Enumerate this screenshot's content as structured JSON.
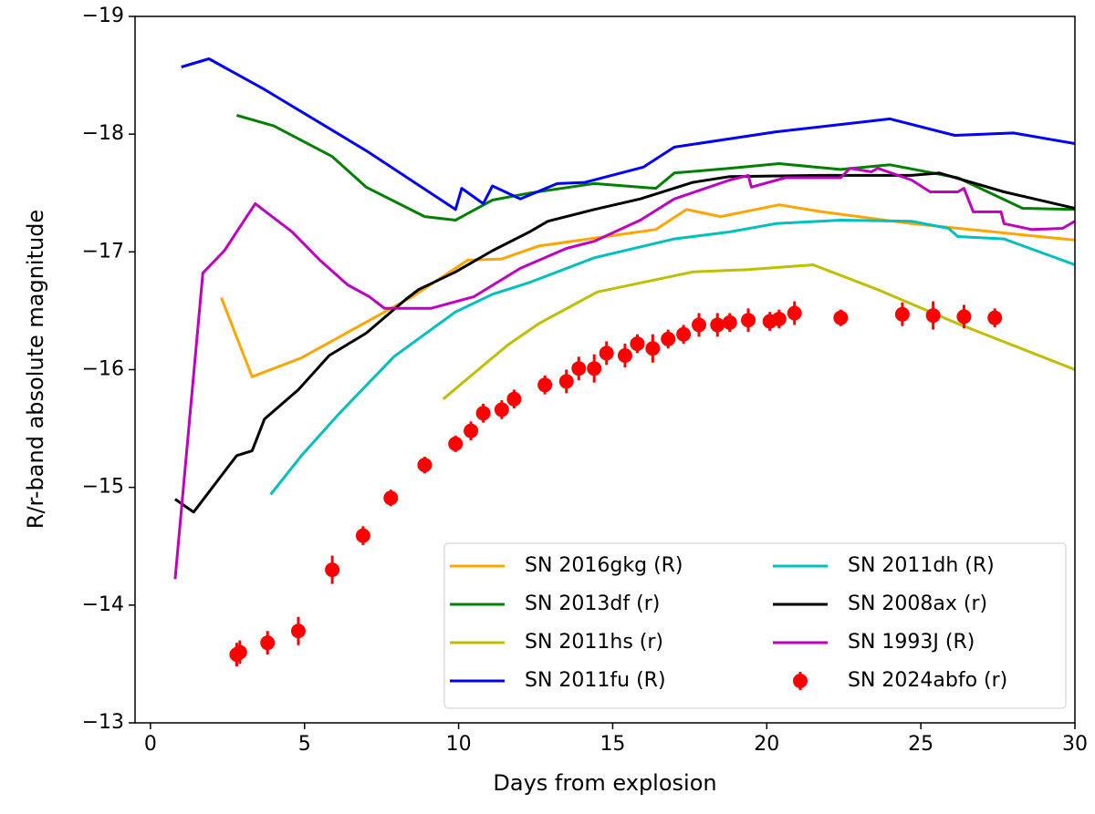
{
  "chart_data": {
    "type": "line",
    "x_label": "Days from explosion",
    "y_label": "R/r-band absolute magnitude",
    "xlim": [
      -0.5,
      30
    ],
    "xticks": [
      0,
      5,
      10,
      15,
      20,
      25,
      30
    ],
    "ylim": [
      -13,
      -19
    ],
    "yticks": [
      {
        "value": -19,
        "label": "−19"
      },
      {
        "value": -18,
        "label": "−18"
      },
      {
        "value": -17,
        "label": "−17"
      },
      {
        "value": -16,
        "label": "−16"
      },
      {
        "value": -15,
        "label": "−15"
      },
      {
        "value": -14,
        "label": "−14"
      },
      {
        "value": -13,
        "label": "−13"
      }
    ],
    "grid": false,
    "legend": "lower right",
    "series": [
      {
        "name": "SN 2016gkg (R)",
        "color": "#ffa500",
        "x": [
          2.3,
          3.3,
          4.9,
          8.5,
          10.3,
          11.4,
          12.6,
          15.3,
          16.4,
          17.4,
          18.5,
          20.4,
          21.8,
          24.7,
          30.0
        ],
        "values": [
          -16.61,
          -15.94,
          -16.1,
          -16.62,
          -16.93,
          -16.94,
          -17.05,
          -17.15,
          -17.19,
          -17.36,
          -17.3,
          -17.4,
          -17.34,
          -17.24,
          -17.1
        ]
      },
      {
        "name": "SN 2013df (r)",
        "color": "#008000",
        "x": [
          2.8,
          4.0,
          5.9,
          7.0,
          8.9,
          9.9,
          11.1,
          12.3,
          14.4,
          16.4,
          17.0,
          18.8,
          20.4,
          22.4,
          24.0,
          26.2,
          28.3,
          30.0
        ],
        "values": [
          -18.16,
          -18.07,
          -17.81,
          -17.55,
          -17.3,
          -17.27,
          -17.44,
          -17.5,
          -17.58,
          -17.54,
          -17.67,
          -17.71,
          -17.75,
          -17.7,
          -17.74,
          -17.63,
          -17.37,
          -17.36
        ]
      },
      {
        "name": "SN 2011hs (r)",
        "color": "#bfbf00",
        "x": [
          9.5,
          10.5,
          11.6,
          12.6,
          14.5,
          17.6,
          19.4,
          21.5,
          23.6,
          26.2,
          30.0
        ],
        "values": [
          -15.75,
          -15.97,
          -16.21,
          -16.39,
          -16.66,
          -16.83,
          -16.85,
          -16.89,
          -16.68,
          -16.39,
          -16.0
        ]
      },
      {
        "name": "SN 2011fu (R)",
        "color": "#0000ff",
        "x": [
          1.0,
          1.9,
          3.7,
          7.0,
          9.9,
          10.1,
          10.8,
          11.1,
          12.0,
          13.2,
          14.1,
          16.0,
          17.0,
          20.3,
          24.0,
          26.1,
          28.0,
          30.0
        ],
        "values": [
          -18.57,
          -18.64,
          -18.38,
          -17.86,
          -17.36,
          -17.54,
          -17.41,
          -17.56,
          -17.45,
          -17.58,
          -17.59,
          -17.72,
          -17.89,
          -18.02,
          -18.13,
          -17.99,
          -18.01,
          -17.92
        ]
      },
      {
        "name": "SN 2011dh (R)",
        "color": "#00bfbf",
        "x": [
          3.9,
          4.9,
          6.1,
          7.9,
          8.9,
          9.9,
          11.1,
          12.3,
          14.4,
          17.0,
          18.8,
          20.3,
          22.4,
          24.7,
          25.9,
          26.2,
          27.7,
          30.0
        ],
        "values": [
          -14.94,
          -15.27,
          -15.62,
          -16.11,
          -16.3,
          -16.49,
          -16.64,
          -16.74,
          -16.95,
          -17.11,
          -17.17,
          -17.24,
          -17.27,
          -17.26,
          -17.2,
          -17.13,
          -17.11,
          -16.89
        ]
      },
      {
        "name": "SN 2008ax (r)",
        "color": "#000000",
        "x": [
          0.8,
          1.4,
          2.8,
          3.3,
          3.7,
          4.8,
          5.8,
          7.0,
          8.3,
          8.7,
          9.9,
          11.1,
          12.3,
          12.9,
          14.4,
          15.9,
          17.6,
          18.8,
          21.8,
          24.7,
          25.6,
          27.7,
          30.0
        ],
        "values": [
          -14.9,
          -14.79,
          -15.27,
          -15.31,
          -15.58,
          -15.83,
          -16.12,
          -16.31,
          -16.6,
          -16.68,
          -16.83,
          -17.01,
          -17.17,
          -17.26,
          -17.36,
          -17.45,
          -17.59,
          -17.64,
          -17.65,
          -17.65,
          -17.67,
          -17.51,
          -17.37
        ]
      },
      {
        "name": "SN 1993J (R)",
        "color": "#bf00bf",
        "x": [
          0.8,
          1.7,
          2.4,
          3.4,
          4.6,
          5.5,
          6.4,
          7.1,
          7.6,
          9.1,
          10.5,
          12.0,
          13.5,
          14.4,
          15.9,
          17.0,
          18.8,
          19.4,
          19.5,
          20.6,
          22.4,
          22.7,
          23.4,
          23.6,
          24.7,
          25.3,
          26.2,
          26.4,
          26.7,
          27.6,
          27.7,
          28.6,
          29.6,
          30.0
        ],
        "values": [
          -14.22,
          -16.82,
          -17.01,
          -17.41,
          -17.17,
          -16.93,
          -16.72,
          -16.62,
          -16.52,
          -16.52,
          -16.62,
          -16.86,
          -17.03,
          -17.09,
          -17.27,
          -17.45,
          -17.61,
          -17.65,
          -17.55,
          -17.63,
          -17.63,
          -17.71,
          -17.68,
          -17.71,
          -17.61,
          -17.51,
          -17.51,
          -17.54,
          -17.34,
          -17.34,
          -17.24,
          -17.19,
          -17.2,
          -17.26
        ]
      },
      {
        "name": "SN 2024abfo (r)",
        "color": "#ff0000",
        "mode": "markers",
        "x": [
          2.8,
          2.9,
          3.8,
          4.8,
          5.9,
          6.9,
          7.8,
          8.9,
          9.9,
          10.4,
          10.8,
          11.4,
          11.8,
          12.8,
          13.5,
          13.9,
          14.4,
          14.8,
          15.4,
          15.8,
          16.3,
          16.8,
          17.3,
          17.8,
          18.4,
          18.8,
          19.4,
          20.1,
          20.4,
          20.9,
          22.4,
          24.4,
          25.4,
          26.4,
          27.4
        ],
        "values": [
          -13.58,
          -13.6,
          -13.68,
          -13.78,
          -14.3,
          -14.59,
          -14.91,
          -15.19,
          -15.37,
          -15.48,
          -15.63,
          -15.66,
          -15.75,
          -15.87,
          -15.9,
          -16.01,
          -16.01,
          -16.14,
          -16.12,
          -16.22,
          -16.18,
          -16.26,
          -16.3,
          -16.38,
          -16.38,
          -16.4,
          -16.42,
          -16.41,
          -16.43,
          -16.48,
          -16.44,
          -16.47,
          -16.46,
          -16.45,
          -16.44
        ],
        "errors": [
          0.1,
          0.1,
          0.1,
          0.12,
          0.12,
          0.08,
          0.07,
          0.07,
          0.07,
          0.08,
          0.08,
          0.08,
          0.08,
          0.08,
          0.1,
          0.1,
          0.12,
          0.1,
          0.1,
          0.08,
          0.12,
          0.08,
          0.08,
          0.1,
          0.1,
          0.08,
          0.1,
          0.08,
          0.08,
          0.1,
          0.07,
          0.1,
          0.12,
          0.1,
          0.08
        ]
      }
    ]
  }
}
